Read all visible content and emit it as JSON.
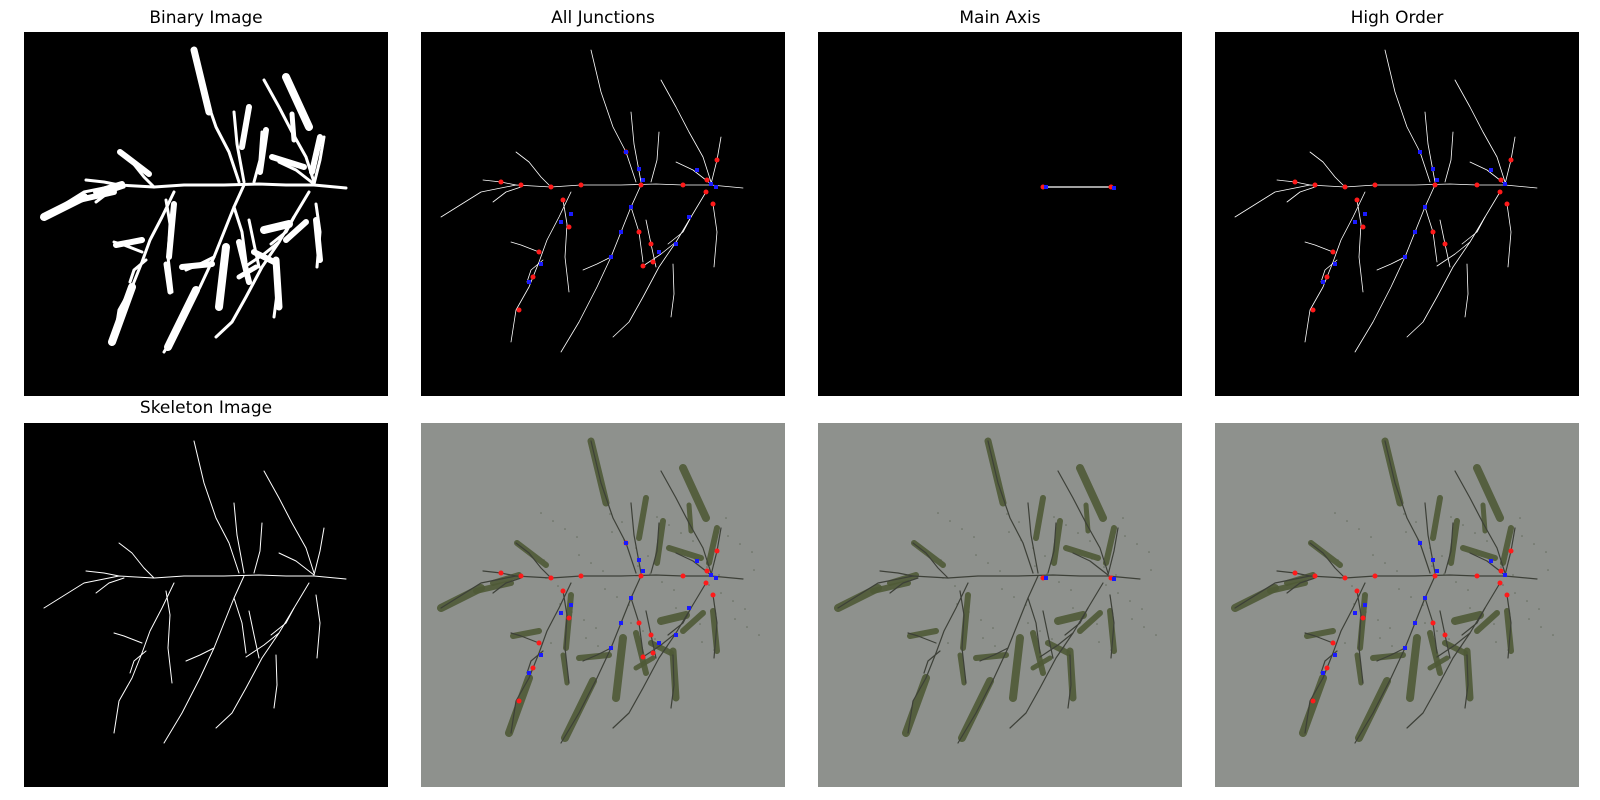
{
  "titles": {
    "binary": "Binary Image",
    "all_junctions": "All Junctions",
    "main_axis": "Main Axis",
    "high_order": "High Order",
    "skeleton": "Skeleton Image"
  },
  "colors": {
    "background_dark": "#000000",
    "skeleton_line": "#ffffff",
    "photo_background": "#8e918d",
    "photo_stem": "#3d4038",
    "spikelet": "#4f5a37",
    "junction_red": "#ff1a1a",
    "junction_blue": "#1a1aff"
  }
}
